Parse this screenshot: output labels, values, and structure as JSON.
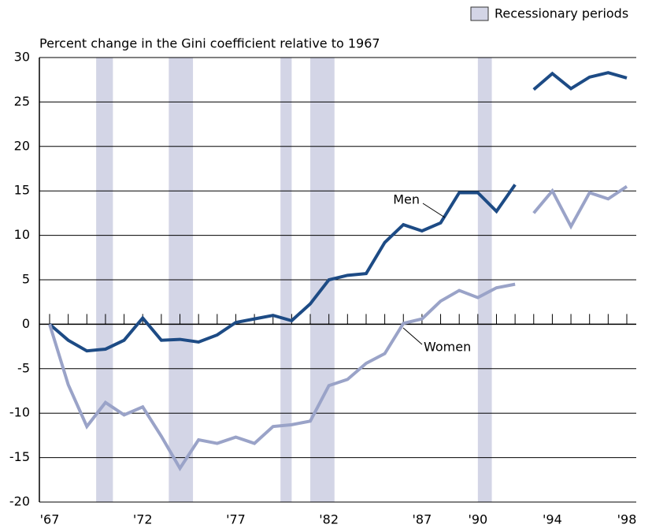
{
  "chart_data": {
    "type": "line",
    "title": "Percent change in the Gini coefficient relative to 1967",
    "x": [
      1967,
      1968,
      1969,
      1970,
      1971,
      1972,
      1973,
      1974,
      1975,
      1976,
      1977,
      1978,
      1979,
      1980,
      1981,
      1982,
      1983,
      1984,
      1985,
      1986,
      1987,
      1988,
      1989,
      1990,
      1991,
      1992,
      null,
      1993,
      1994,
      1995,
      1996,
      1997,
      1998
    ],
    "series": [
      {
        "name": "Men",
        "color": "#1d4b85",
        "values": [
          0,
          -1.8,
          -3.0,
          -2.8,
          -1.8,
          0.7,
          -1.8,
          -1.7,
          -2.0,
          -1.2,
          0.2,
          0.6,
          1.0,
          0.4,
          2.3,
          5.0,
          5.5,
          5.7,
          9.2,
          11.2,
          10.5,
          11.4,
          14.8,
          14.8,
          12.7,
          15.7,
          null,
          26.4,
          28.2,
          26.5,
          27.8,
          28.3,
          27.7
        ]
      },
      {
        "name": "Women",
        "color": "#9aa3c8",
        "values": [
          0,
          -6.8,
          -11.5,
          -8.8,
          -10.2,
          -9.3,
          -12.6,
          -16.2,
          -13.0,
          -13.4,
          -12.7,
          -13.4,
          -11.5,
          -11.3,
          -10.9,
          -6.9,
          -6.2,
          -4.4,
          -3.3,
          0.1,
          0.6,
          2.6,
          3.8,
          3.0,
          4.1,
          4.5,
          null,
          12.5,
          15.0,
          11.0,
          14.8,
          14.1,
          15.5
        ]
      }
    ],
    "recessions": {
      "name": "Recessionary periods",
      "color": "#d3d5e6",
      "ranges": [
        [
          1969.5,
          1970.4
        ],
        [
          1973.4,
          1974.7
        ],
        [
          1979.4,
          1980.0
        ],
        [
          1981.0,
          1982.3
        ],
        [
          1990.0,
          1990.75
        ]
      ]
    },
    "xlim": [
      1967,
      1998
    ],
    "xticks": [
      {
        "value": 1967,
        "label": "'67"
      },
      {
        "value": 1972,
        "label": "'72"
      },
      {
        "value": 1977,
        "label": "'77"
      },
      {
        "value": 1982,
        "label": "'82"
      },
      {
        "value": 1987,
        "label": "'87"
      },
      {
        "value": 1990,
        "label": "'90"
      },
      {
        "value": 1994,
        "label": "'94"
      },
      {
        "value": 1998,
        "label": "'98"
      }
    ],
    "ylim": [
      -20,
      30
    ],
    "yticks": [
      -20,
      -15,
      -10,
      -5,
      0,
      5,
      10,
      15,
      20,
      25,
      30
    ],
    "grid": true
  }
}
